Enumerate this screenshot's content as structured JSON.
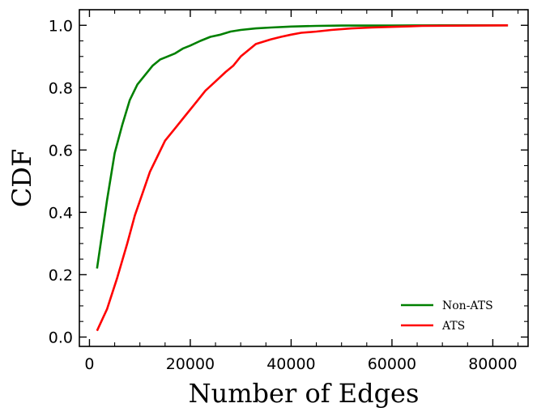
{
  "chart_data": {
    "type": "line",
    "title": "",
    "xlabel": "Number of Edges",
    "ylabel": "CDF",
    "xlim": [
      -2000,
      87000
    ],
    "ylim": [
      -0.03,
      1.05
    ],
    "xticks": [
      0,
      20000,
      40000,
      60000,
      80000
    ],
    "yticks": [
      0.0,
      0.2,
      0.4,
      0.6,
      0.8,
      1.0
    ],
    "xtick_labels": [
      "0",
      "20000",
      "40000",
      "60000",
      "80000"
    ],
    "ytick_labels": [
      "0.0",
      "0.2",
      "0.4",
      "0.6",
      "0.8",
      "1.0"
    ],
    "grid": false,
    "legend_position": "bottom-right",
    "series": [
      {
        "name": "Non-ATS",
        "color": "#008000",
        "x": [
          1500,
          2500,
          3500,
          5000,
          6500,
          8000,
          9500,
          11000,
          12500,
          14000,
          15500,
          17000,
          18500,
          20000,
          22000,
          24000,
          26000,
          28000,
          30000,
          33000,
          36000,
          40000,
          45000,
          50000,
          60000,
          70000,
          83000
        ],
        "y": [
          0.22,
          0.33,
          0.44,
          0.59,
          0.68,
          0.76,
          0.81,
          0.84,
          0.87,
          0.89,
          0.9,
          0.91,
          0.925,
          0.935,
          0.95,
          0.963,
          0.97,
          0.98,
          0.985,
          0.99,
          0.993,
          0.996,
          0.998,
          0.999,
          0.999,
          1.0,
          1.0
        ]
      },
      {
        "name": "ATS",
        "color": "#ff0000",
        "x": [
          1500,
          3500,
          5500,
          7500,
          9000,
          10500,
          12000,
          13500,
          15000,
          17000,
          19000,
          21000,
          23000,
          25000,
          27000,
          28500,
          30000,
          33000,
          36000,
          38000,
          40000,
          42000,
          45000,
          48000,
          52000,
          56000,
          60000,
          66000,
          83000
        ],
        "y": [
          0.02,
          0.09,
          0.19,
          0.3,
          0.39,
          0.46,
          0.53,
          0.58,
          0.63,
          0.67,
          0.71,
          0.75,
          0.79,
          0.82,
          0.85,
          0.87,
          0.9,
          0.94,
          0.955,
          0.963,
          0.97,
          0.976,
          0.98,
          0.985,
          0.99,
          0.993,
          0.995,
          0.998,
          1.0
        ]
      }
    ]
  }
}
